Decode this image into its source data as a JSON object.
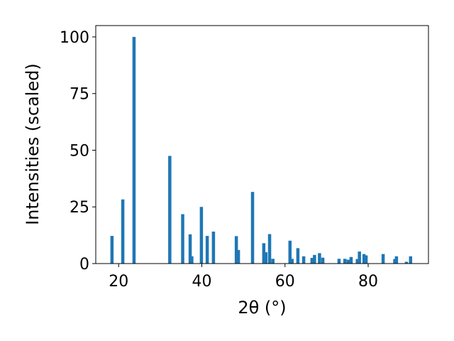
{
  "chart_data": {
    "type": "bar",
    "title": "",
    "xlabel": "2θ (°)",
    "ylabel": "Intensities (scaled)",
    "xlim": [
      14.5,
      94.5
    ],
    "ylim": [
      0,
      105
    ],
    "xticks": [
      20,
      40,
      60,
      80
    ],
    "yticks": [
      0,
      25,
      50,
      75,
      100
    ],
    "bar_color": "#1f77b4",
    "grid": false,
    "legend": "none",
    "peaks": [
      {
        "x": 18.4,
        "y": 12.2
      },
      {
        "x": 21.0,
        "y": 28.3
      },
      {
        "x": 23.7,
        "y": 100
      },
      {
        "x": 32.3,
        "y": 47.5
      },
      {
        "x": 35.4,
        "y": 21.8
      },
      {
        "x": 37.2,
        "y": 12.9
      },
      {
        "x": 37.6,
        "y": 3.2
      },
      {
        "x": 39.9,
        "y": 25.0
      },
      {
        "x": 41.3,
        "y": 12.2
      },
      {
        "x": 42.8,
        "y": 14.1
      },
      {
        "x": 48.3,
        "y": 12.1
      },
      {
        "x": 48.8,
        "y": 6.0
      },
      {
        "x": 52.2,
        "y": 31.6
      },
      {
        "x": 54.9,
        "y": 9.0
      },
      {
        "x": 55.4,
        "y": 5.0
      },
      {
        "x": 56.3,
        "y": 13.0
      },
      {
        "x": 57.1,
        "y": 2.1
      },
      {
        "x": 61.2,
        "y": 10.1
      },
      {
        "x": 61.7,
        "y": 2.1
      },
      {
        "x": 63.1,
        "y": 6.8
      },
      {
        "x": 64.5,
        "y": 3.2
      },
      {
        "x": 66.5,
        "y": 2.5
      },
      {
        "x": 67.1,
        "y": 3.8
      },
      {
        "x": 68.3,
        "y": 4.6
      },
      {
        "x": 69.1,
        "y": 2.6
      },
      {
        "x": 73.0,
        "y": 2.1
      },
      {
        "x": 74.4,
        "y": 2.1
      },
      {
        "x": 75.2,
        "y": 1.7
      },
      {
        "x": 75.9,
        "y": 2.9
      },
      {
        "x": 77.4,
        "y": 2.0
      },
      {
        "x": 77.9,
        "y": 5.3
      },
      {
        "x": 79.0,
        "y": 4.2
      },
      {
        "x": 79.5,
        "y": 3.6
      },
      {
        "x": 83.6,
        "y": 4.2
      },
      {
        "x": 86.4,
        "y": 2.0
      },
      {
        "x": 86.8,
        "y": 3.2
      },
      {
        "x": 89.2,
        "y": 0.8
      },
      {
        "x": 90.2,
        "y": 3.2
      }
    ]
  }
}
